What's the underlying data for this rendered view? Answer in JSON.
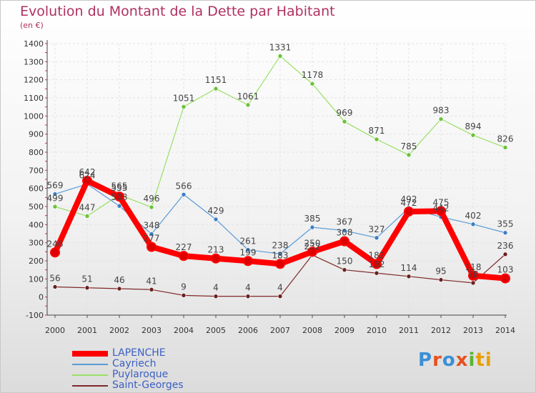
{
  "chart_data": {
    "type": "line",
    "title": "Evolution du Montant de la Dette par Habitant",
    "unit_label": "(en €)",
    "categories": [
      "2000",
      "2001",
      "2002",
      "2003",
      "2004",
      "2005",
      "2006",
      "2007",
      "2008",
      "2009",
      "2010",
      "2011",
      "2012",
      "2013",
      "2014"
    ],
    "ylim": [
      -100,
      1400
    ],
    "yticks": [
      "-100",
      "0",
      "100",
      "200",
      "300",
      "400",
      "500",
      "600",
      "700",
      "800",
      "900",
      "1000",
      "1100",
      "1200",
      "1300",
      "1400"
    ],
    "grid": true,
    "legend_position": "bottom-left",
    "series": [
      {
        "name": "LAPENCHE",
        "color": "#ff0000",
        "marker": "#dd0000",
        "width": 8,
        "values": [
          246,
          642,
          555,
          277,
          227,
          213,
          199,
          183,
          250,
          308,
          182,
          472,
          475,
          118,
          103
        ],
        "labels": [
          "246",
          "642",
          "555",
          "277",
          "227",
          "213",
          "199",
          "183",
          "250",
          "308",
          "182",
          "472",
          "475",
          "118",
          "103"
        ]
      },
      {
        "name": "Cayriech",
        "color": "#5b9bd5",
        "marker": "#3a7fc4",
        "width": 1.2,
        "values": [
          569,
          624,
          503,
          348,
          566,
          429,
          261,
          238,
          385,
          367,
          327,
          492,
          442,
          402,
          355
        ],
        "labels": [
          "569",
          "624",
          "503",
          "348",
          "566",
          "429",
          "261",
          "238",
          "385",
          "367",
          "327",
          "492",
          "442",
          "402",
          "355"
        ]
      },
      {
        "name": "Puylaroque",
        "color": "#99e066",
        "marker": "#6cc23a",
        "width": 1.2,
        "values": [
          499,
          447,
          565,
          496,
          1051,
          1151,
          1061,
          1331,
          1178,
          969,
          871,
          785,
          983,
          894,
          826
        ],
        "labels": [
          "499",
          "447",
          "565",
          "496",
          "1051",
          "1151",
          "1061",
          "1331",
          "1178",
          "969",
          "871",
          "785",
          "983",
          "894",
          "826"
        ]
      },
      {
        "name": "Saint-Georges",
        "color": "#7f2a2a",
        "marker": "#6a1f1f",
        "width": 1.2,
        "values": [
          56,
          51,
          46,
          41,
          9,
          4,
          4,
          4,
          232,
          150,
          132,
          114,
          95,
          78,
          236
        ],
        "labels": [
          "56",
          "51",
          "46",
          "41",
          "9",
          "4",
          "4",
          "4",
          "232",
          "150",
          "132",
          "114",
          "95",
          "78",
          "236"
        ]
      }
    ]
  },
  "logo": {
    "p1": "P",
    "p2": "r",
    "p3": "o",
    "p4": "x",
    "p5": "i",
    "p6": "ti"
  }
}
